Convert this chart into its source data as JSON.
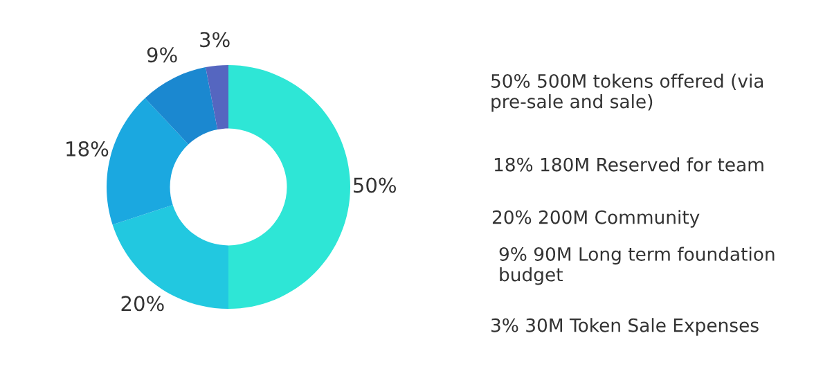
{
  "chart_data": {
    "type": "donut",
    "categories": [
      null,
      null,
      null,
      null,
      null
    ],
    "values": [
      50,
      20,
      18,
      9,
      3
    ],
    "value_labels": [
      "50%",
      "20%",
      "18%",
      "9%",
      "3%"
    ],
    "colors": [
      "#2ee6d6",
      "#22c8e0",
      "#1ba8e0",
      "#1b88d0",
      "#5566c0"
    ],
    "legend": false,
    "annotations": [
      "50% 500M tokens offered (via pre-sale and sale)",
      "18% 180M Reserved for team",
      "20% 200M Community",
      "9% 90M Long term foundation budget",
      "3% 30M Token Sale Expenses"
    ]
  }
}
